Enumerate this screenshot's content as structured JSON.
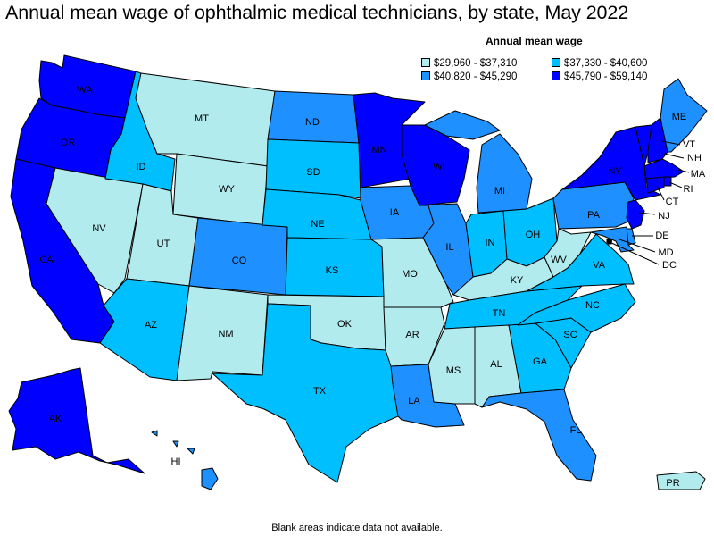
{
  "title": "Annual mean wage of ophthalmic medical technicians, by state, May 2022",
  "legend": {
    "title": "Annual mean wage",
    "bins": [
      {
        "id": "b1",
        "label": "$29,960 - $37,310",
        "color": "#b2ebee"
      },
      {
        "id": "b2",
        "label": "$37,330 - $40,600",
        "color": "#00bfff"
      },
      {
        "id": "b3",
        "label": "$40,820 - $45,290",
        "color": "#1e90ff"
      },
      {
        "id": "b4",
        "label": "$45,790 - $59,140",
        "color": "#0000ff"
      }
    ]
  },
  "footnote": "Blank areas indicate data not available.",
  "states": {
    "WA": "b4",
    "OR": "b4",
    "CA": "b4",
    "AK": "b4",
    "NV": "b1",
    "ID": "b2",
    "MT": "b1",
    "WY": "b1",
    "UT": "b1",
    "AZ": "b2",
    "NM": "b1",
    "CO": "b3",
    "ND": "b3",
    "SD": "b2",
    "NE": "b2",
    "KS": "b2",
    "OK": "b1",
    "TX": "b2",
    "MN": "b4",
    "IA": "b3",
    "MO": "b1",
    "AR": "b1",
    "LA": "b3",
    "WI": "b4",
    "IL": "b3",
    "MI": "b3",
    "IN": "b2",
    "OH": "b2",
    "KY": "b1",
    "TN": "b2",
    "MS": "b1",
    "AL": "b1",
    "GA": "b2",
    "FL": "b3",
    "SC": "b2",
    "NC": "b2",
    "VA": "b2",
    "WV": "b1",
    "PA": "b3",
    "NY": "b4",
    "NJ": "b4",
    "DE": "b3",
    "MD": "b3",
    "DC": "b1",
    "ME": "b3",
    "VT": "b4",
    "NH": "b4",
    "MA": "b4",
    "RI": "b4",
    "CT": "b4",
    "HI": "b3",
    "PR": "b1"
  },
  "labels": {
    "WA": "WA",
    "OR": "OR",
    "CA": "CA",
    "AK": "AK",
    "NV": "NV",
    "ID": "ID",
    "MT": "MT",
    "WY": "WY",
    "UT": "UT",
    "AZ": "AZ",
    "NM": "NM",
    "CO": "CO",
    "ND": "ND",
    "SD": "SD",
    "NE": "NE",
    "KS": "KS",
    "OK": "OK",
    "TX": "TX",
    "MN": "MN",
    "IA": "IA",
    "MO": "MO",
    "AR": "AR",
    "LA": "LA",
    "WI": "WI",
    "IL": "IL",
    "MI": "MI",
    "IN": "IN",
    "OH": "OH",
    "KY": "KY",
    "TN": "TN",
    "MS": "MS",
    "AL": "AL",
    "GA": "GA",
    "FL": "FL",
    "SC": "SC",
    "NC": "NC",
    "VA": "VA",
    "WV": "WV",
    "PA": "PA",
    "NY": "NY",
    "NJ": "NJ",
    "DE": "DE",
    "MD": "MD",
    "DC": "DC",
    "ME": "ME",
    "VT": "VT",
    "NH": "NH",
    "MA": "MA",
    "RI": "RI",
    "CT": "CT",
    "HI": "HI",
    "PR": "PR"
  }
}
